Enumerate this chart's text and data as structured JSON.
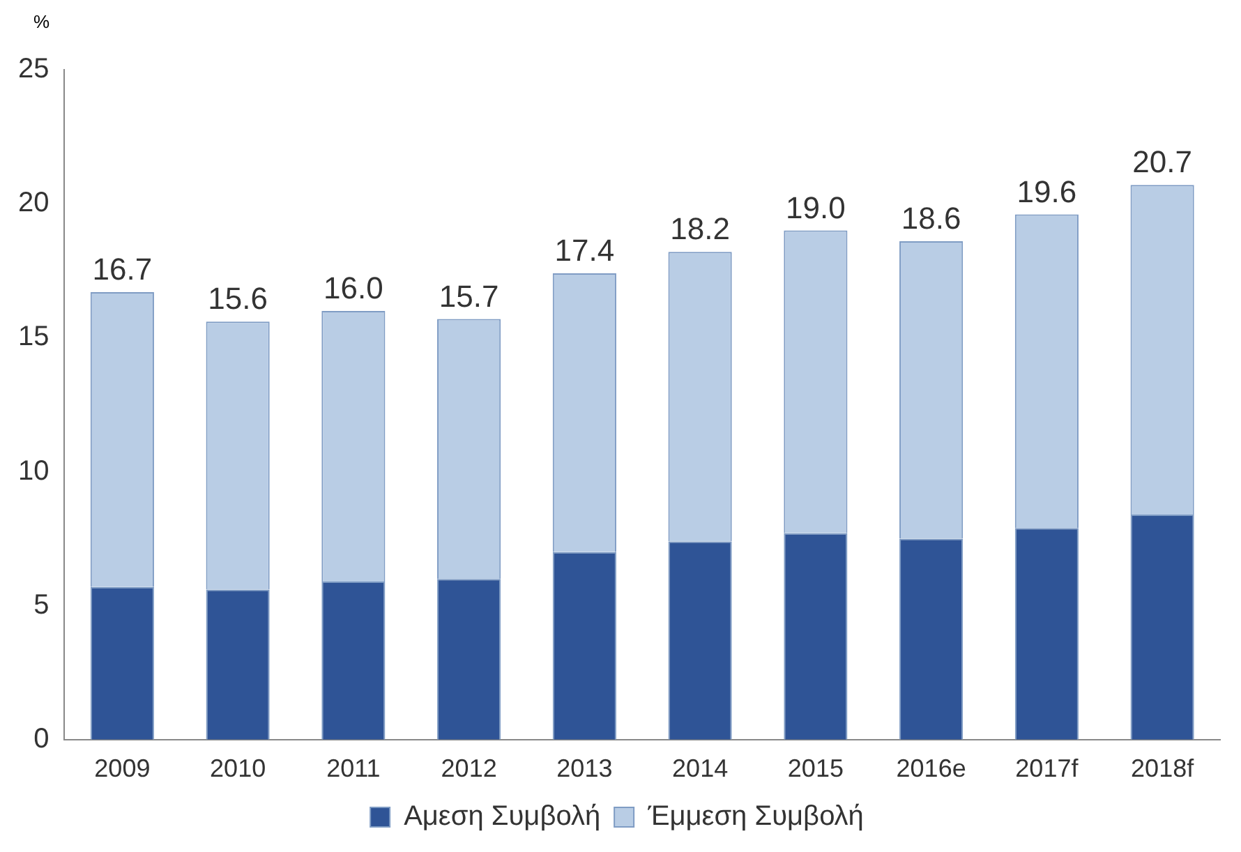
{
  "chart_data": {
    "type": "bar",
    "stacked": true,
    "ylabel": "%",
    "categories": [
      "2009",
      "2010",
      "2011",
      "2012",
      "2013",
      "2014",
      "2015",
      "2016e",
      "2017f",
      "2018f"
    ],
    "series": [
      {
        "name": "Αμεση Συμβολή",
        "color": "#2f5496",
        "values": [
          5.7,
          5.6,
          5.9,
          6.0,
          7.0,
          7.4,
          7.7,
          7.5,
          7.9,
          8.4
        ]
      },
      {
        "name": "Έμμεση Συμβολή",
        "color": "#b9cde5",
        "values": [
          11.0,
          10.0,
          10.1,
          9.7,
          10.4,
          10.8,
          11.3,
          11.1,
          11.7,
          12.3
        ]
      }
    ],
    "totals": [
      "16.7",
      "15.6",
      "16.0",
      "15.7",
      "17.4",
      "18.2",
      "19.0",
      "18.6",
      "19.6",
      "20.7"
    ],
    "ylim": [
      0,
      25
    ],
    "yticks": [
      0,
      5,
      10,
      15,
      20,
      25
    ],
    "grid": false,
    "legend": "bottom"
  }
}
